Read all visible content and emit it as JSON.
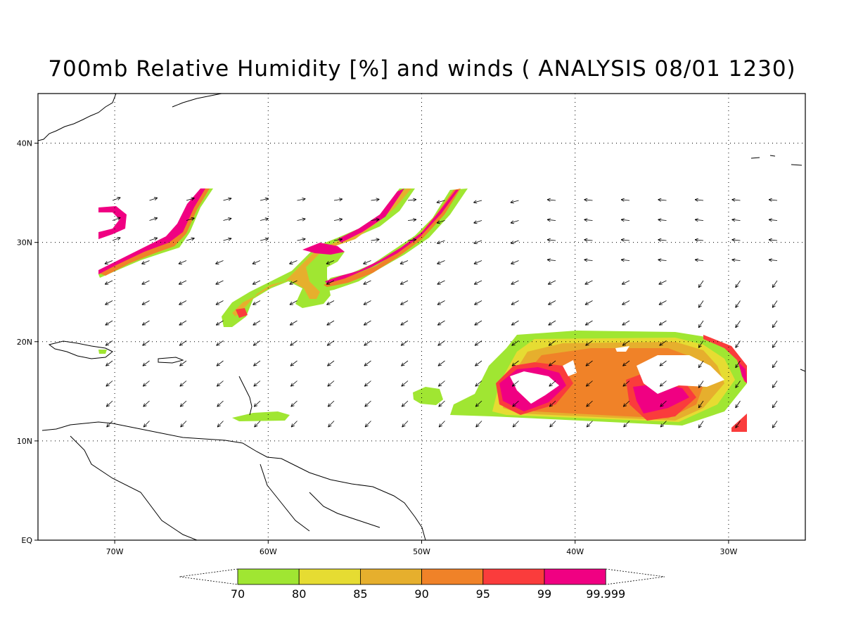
{
  "title": "700mb Relative Humidity [%] and winds ( ANALYSIS 08/01 1230)",
  "map": {
    "lon_range": [
      -75,
      -25
    ],
    "lat_range": [
      0,
      45
    ],
    "lon_ticks": [
      {
        "value": -70,
        "label": "70W"
      },
      {
        "value": -60,
        "label": "60W"
      },
      {
        "value": -50,
        "label": "50W"
      },
      {
        "value": -40,
        "label": "40W"
      },
      {
        "value": -30,
        "label": "30W"
      }
    ],
    "lat_ticks": [
      {
        "value": 0,
        "label": "EQ"
      },
      {
        "value": 10,
        "label": "10N"
      },
      {
        "value": 20,
        "label": "20N"
      },
      {
        "value": 30,
        "label": "30N"
      },
      {
        "value": 40,
        "label": "40N"
      }
    ],
    "grid": "dotted"
  },
  "colorbar": {
    "levels": [
      "70",
      "80",
      "85",
      "90",
      "95",
      "99",
      "99.999"
    ],
    "colors": [
      "#a0e632",
      "#e6dc32",
      "#e6af2d",
      "#f08228",
      "#fa3c3c",
      "#f00082"
    ]
  }
}
